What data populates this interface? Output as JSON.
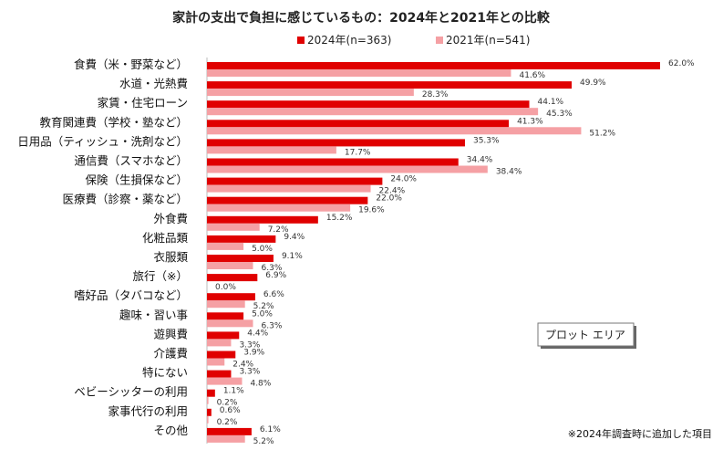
{
  "colors": {
    "series_2024": "#e00000",
    "series_2021": "#f5a0a4"
  },
  "chart_data": {
    "type": "bar",
    "orientation": "horizontal",
    "title": "家計の支出で負担に感じているもの：2024年と2021年との比較",
    "xlim": [
      0,
      62
    ],
    "legend_position": "top-center",
    "grid": false,
    "categories": [
      "食費（米・野菜など）",
      "水道・光熱費",
      "家賃・住宅ローン",
      "教育関連費（学校・塾など）",
      "日用品（ティッシュ・洗剤など）",
      "通信費（スマホなど）",
      "保険（生損保など）",
      "医療費（診察・薬など）",
      "外食費",
      "化粧品類",
      "衣服類",
      "旅行（※）",
      "嗜好品（タバコなど）",
      "趣味・習い事",
      "遊興費",
      "介護費",
      "特にない",
      "ベビーシッターの利用",
      "家事代行の利用",
      "その他"
    ],
    "series": [
      {
        "name": "2024年(n=363)",
        "values": [
          62.0,
          49.9,
          44.1,
          41.3,
          35.3,
          34.4,
          24.0,
          22.0,
          15.2,
          9.4,
          9.1,
          6.9,
          6.6,
          5.0,
          4.4,
          3.9,
          3.3,
          1.1,
          0.6,
          6.1
        ],
        "labels": [
          "62.0%",
          "49.9%",
          "44.1%",
          "41.3%",
          "35.3%",
          "34.4%",
          "24.0%",
          "22.0%",
          "15.2%",
          "9.4%",
          "9.1%",
          "6.9%",
          "6.6%",
          "5.0%",
          "4.4%",
          "3.9%",
          "3.3%",
          "1.1%",
          "0.6%",
          "6.1%"
        ]
      },
      {
        "name": "2021年(n=541)",
        "values": [
          41.6,
          28.3,
          45.3,
          51.2,
          17.7,
          38.4,
          22.4,
          19.6,
          7.2,
          5.0,
          6.3,
          0.0,
          5.2,
          6.3,
          3.3,
          2.4,
          4.8,
          0.2,
          0.2,
          5.2
        ],
        "labels": [
          "41.6%",
          "28.3%",
          "45.3%",
          "51.2%",
          "17.7%",
          "38.4%",
          "22.4%",
          "19.6%",
          "7.2%",
          "5.0%",
          "6.3%",
          "0.0%",
          "5.2%",
          "6.3%",
          "3.3%",
          "2.4%",
          "4.8%",
          "0.2%",
          "0.2%",
          "5.2%"
        ]
      }
    ],
    "annotation": "※2024年調査時に追加した項目"
  },
  "tooltip": {
    "label": "プロット エリア"
  }
}
